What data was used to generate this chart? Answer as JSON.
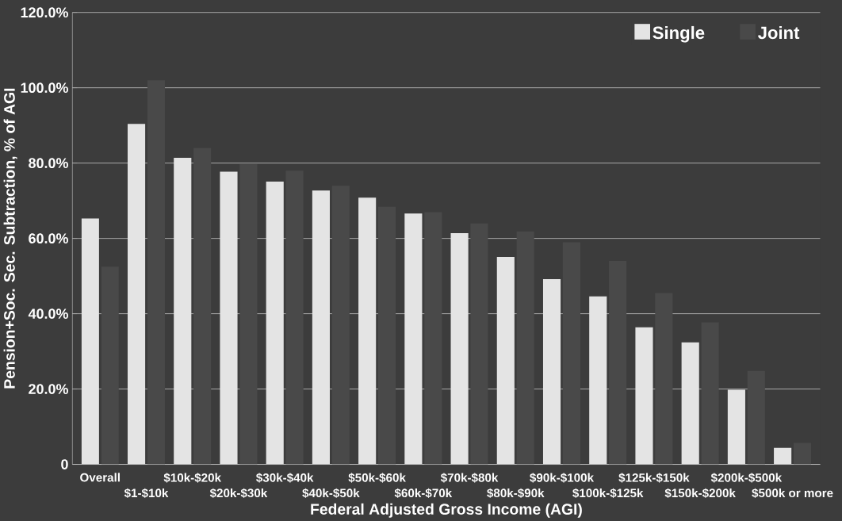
{
  "chart_data": {
    "type": "bar",
    "xlabel": "Federal Adjusted Gross Income (AGI)",
    "ylabel": "Pension+Soc. Sec. Subtraction, % of AGI",
    "categories": [
      "Overall",
      "$1-$10k",
      "$10k-$20k",
      "$20k-$30k",
      "$30k-$40k",
      "$40k-$50k",
      "$50k-$60k",
      "$60k-$70k",
      "$70k-$80k",
      "$80k-$90k",
      "$90k-$100k",
      "$100k-$125k",
      "$125k-$150k",
      "$150k-$200k",
      "$200k-$500k",
      "$500k or more"
    ],
    "series": [
      {
        "name": "Single",
        "color": "#e4e4e4",
        "values": [
          65.3,
          90.4,
          81.4,
          77.7,
          75.1,
          72.7,
          70.8,
          66.6,
          61.4,
          55.1,
          49.2,
          44.6,
          36.4,
          32.4,
          19.8,
          4.4
        ]
      },
      {
        "name": "Joint",
        "color": "#494949",
        "values": [
          52.5,
          102,
          84,
          79.7,
          78,
          74,
          68.4,
          67,
          64,
          61.8,
          59,
          54,
          45.5,
          37.7,
          24.8,
          5.7
        ]
      }
    ],
    "ylim": [
      0,
      120
    ],
    "yticks": [
      {
        "value": 0,
        "label": "0"
      },
      {
        "value": 20,
        "label": "20.0%"
      },
      {
        "value": 40,
        "label": "40.0%"
      },
      {
        "value": 60,
        "label": "60.0%"
      },
      {
        "value": 80,
        "label": "80.0%"
      },
      {
        "value": 100,
        "label": "100.0%"
      },
      {
        "value": 120,
        "label": "120.0%"
      }
    ],
    "grid": "y",
    "legend": "top right"
  }
}
